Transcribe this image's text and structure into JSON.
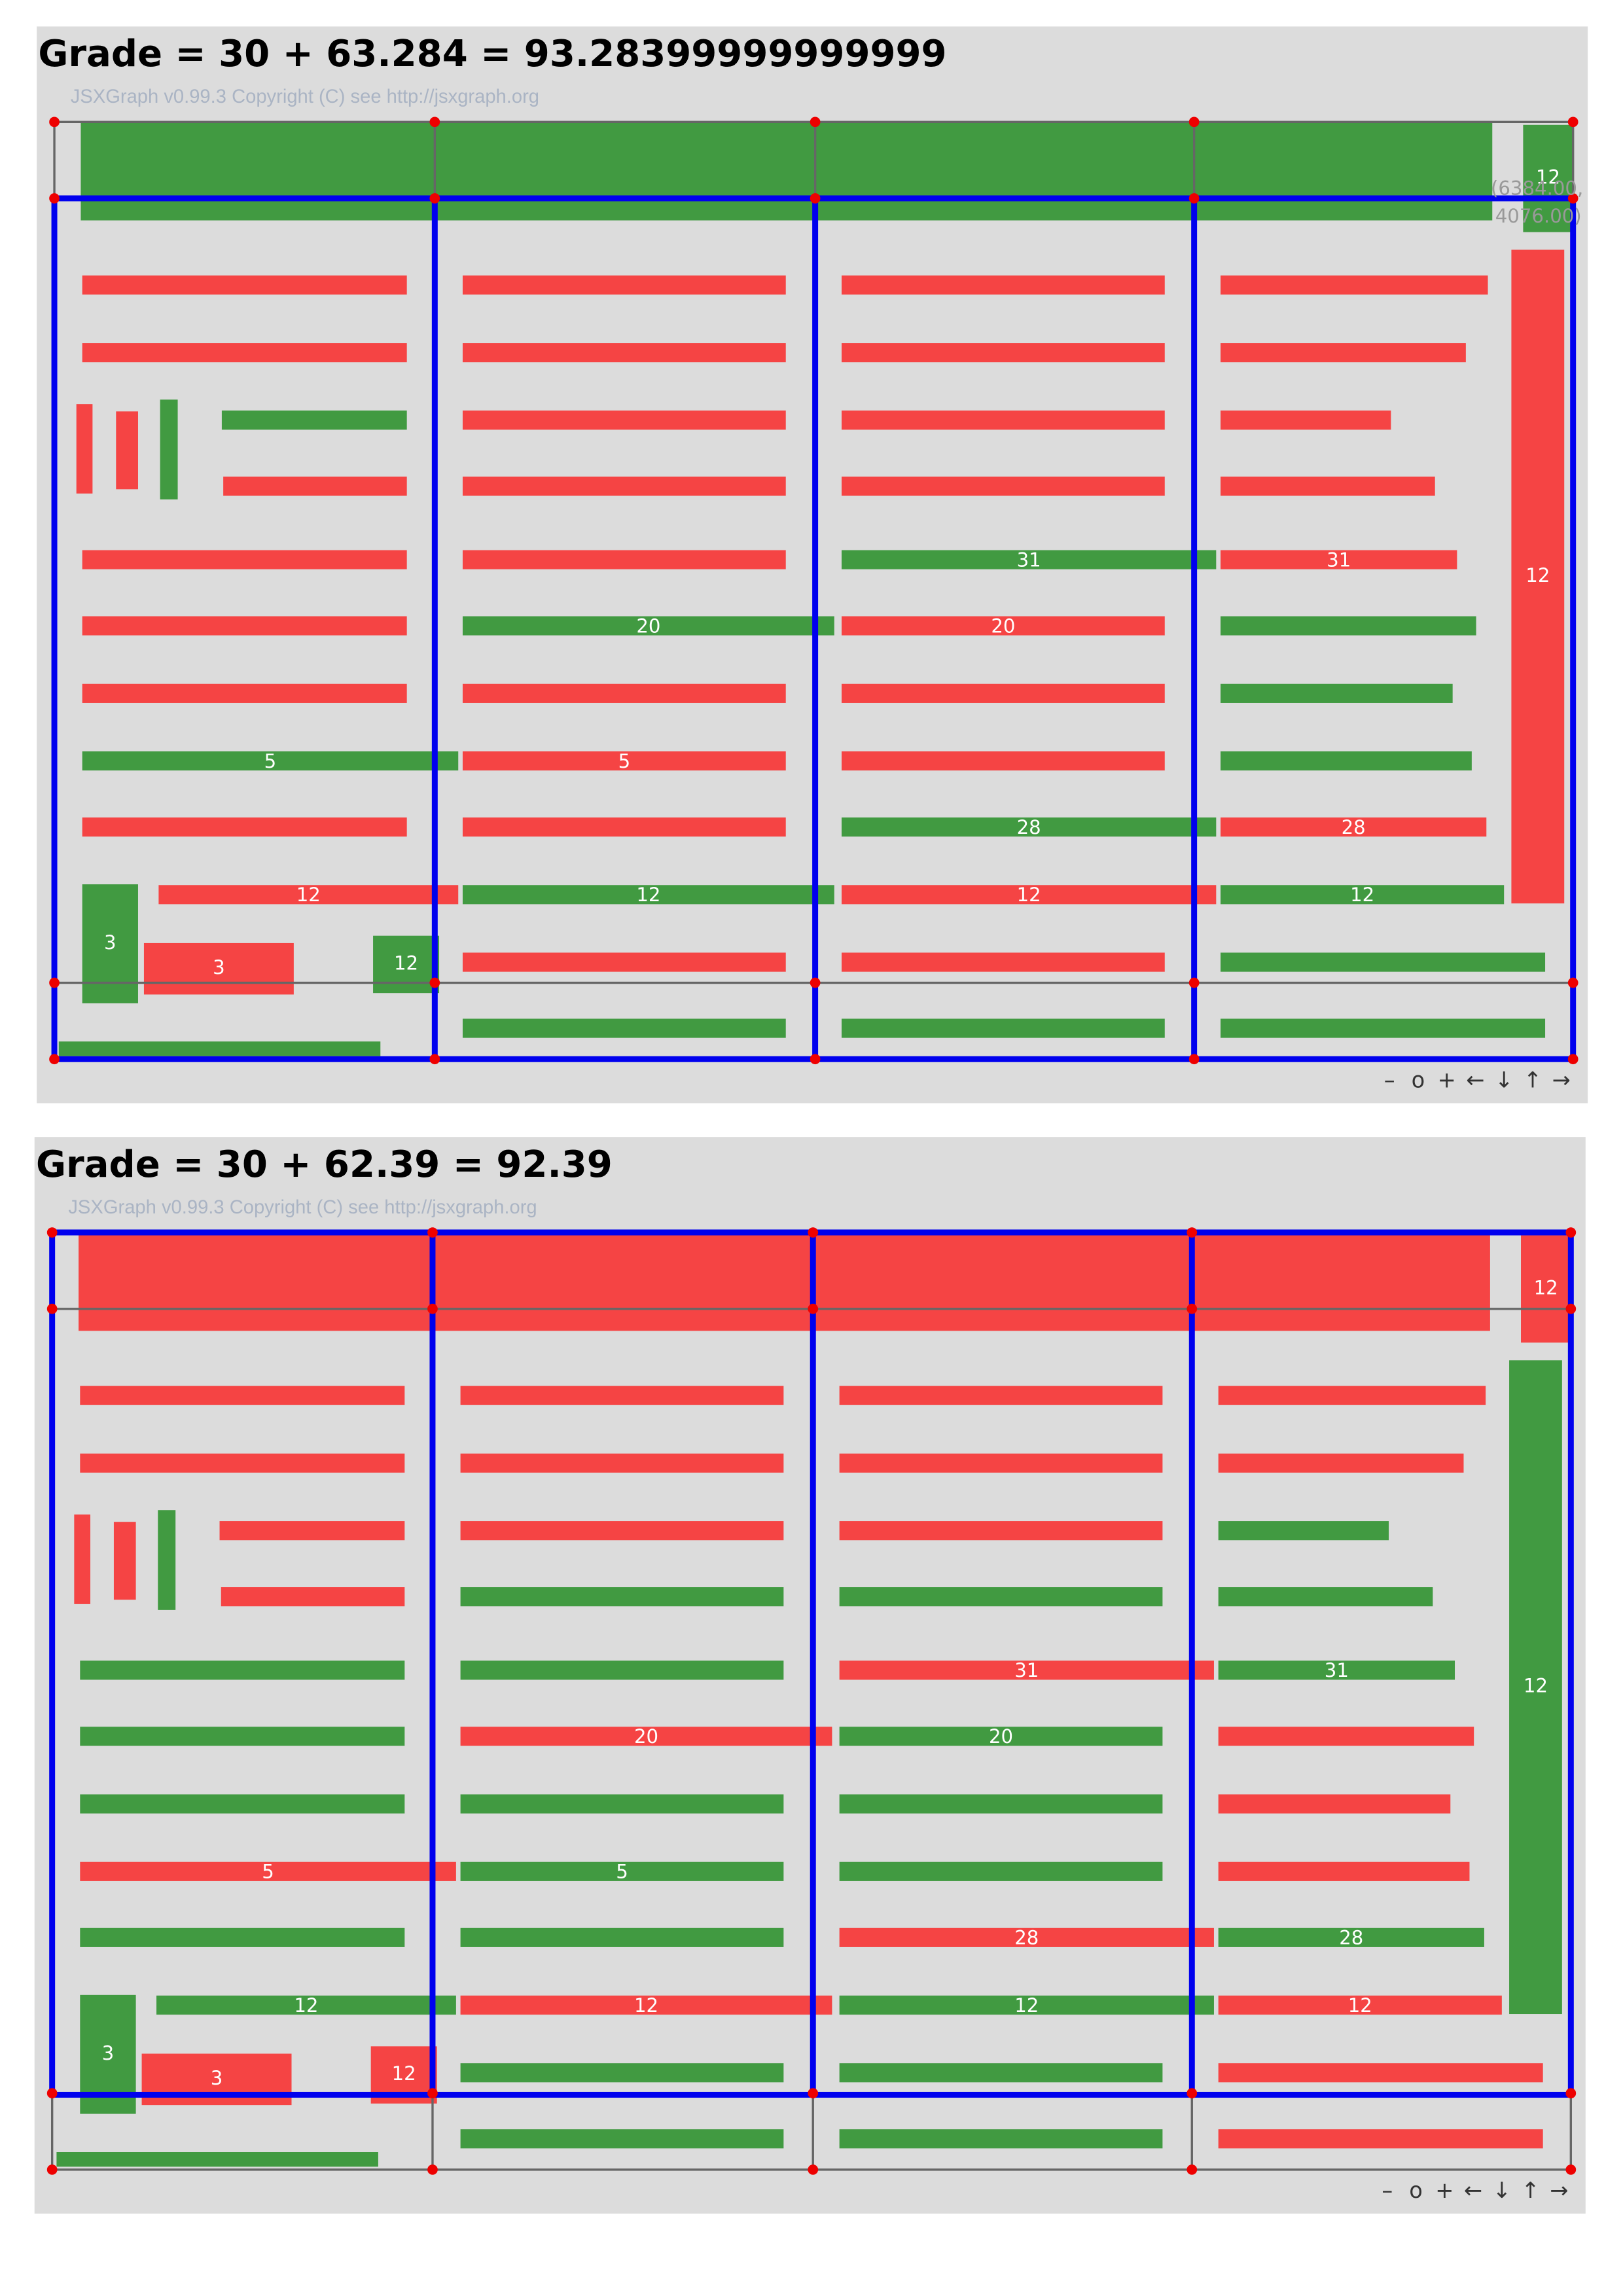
{
  "boards": [
    {
      "title": "Grade = 30 + 63.284 = 93.28399999999999",
      "copyright": "JSXGraph v0.99.3 Copyright (C) see http://jsxgraph.org",
      "labels": [
        "12",
        "12",
        "5",
        "12",
        "3",
        "3",
        "12",
        "20",
        "5",
        "12",
        "31",
        "20",
        "28",
        "12",
        "31",
        "28",
        "12"
      ],
      "coordinates": [
        "(6384.00,",
        "4076.00)"
      ],
      "navigation": [
        "–",
        "o",
        "+",
        "←",
        "↓",
        "↑",
        "→"
      ]
    },
    {
      "title": "Grade = 30 + 62.39 = 92.39",
      "copyright": "JSXGraph v0.99.3 Copyright (C) see http://jsxgraph.org",
      "labels": [
        "12",
        "12",
        "5",
        "12",
        "3",
        "3",
        "12",
        "20",
        "5",
        "12",
        "31",
        "20",
        "28",
        "12",
        "31",
        "28",
        "12"
      ],
      "navigation": [
        "–",
        "o",
        "+",
        "←",
        "↓",
        "↑",
        "→"
      ]
    }
  ]
}
